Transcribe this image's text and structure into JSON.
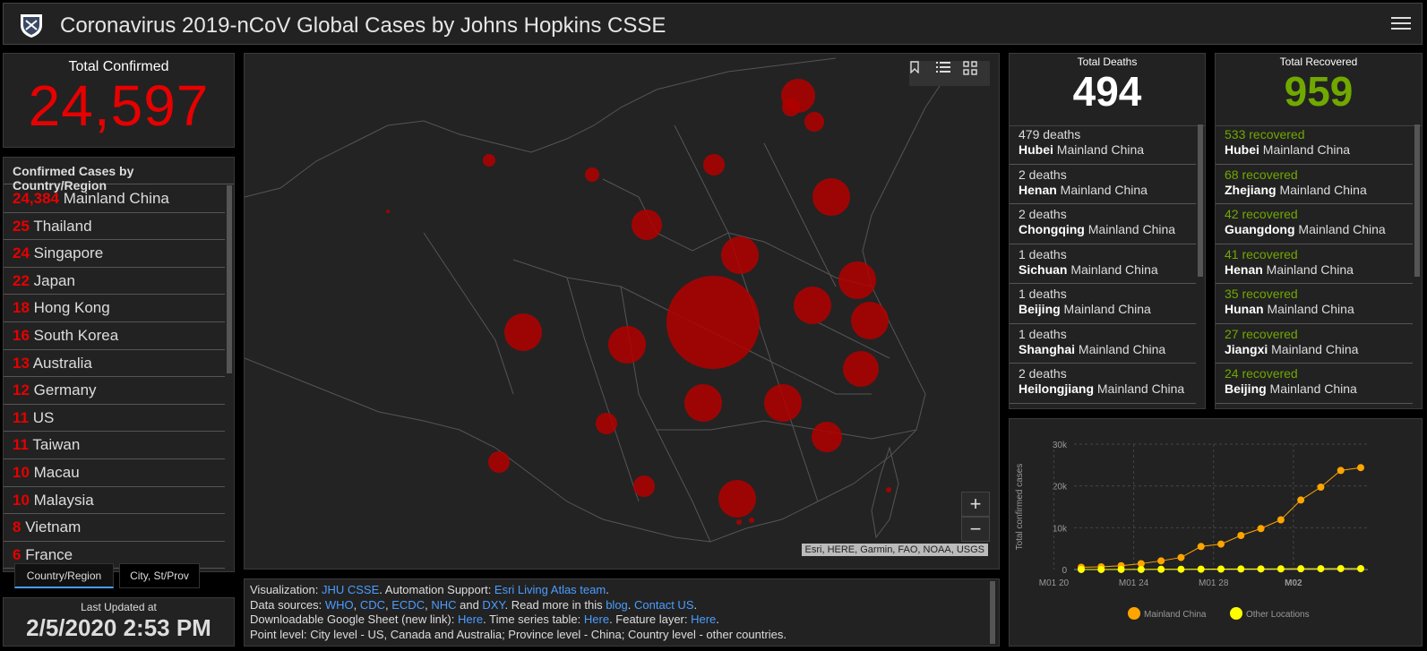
{
  "header": {
    "title": "Coronavirus 2019-nCoV Global Cases by Johns Hopkins CSSE"
  },
  "total_confirmed": {
    "label": "Total Confirmed",
    "value": "24,597"
  },
  "country_list": {
    "header": "Confirmed Cases by Country/Region",
    "items": [
      {
        "count": "24,384",
        "name": "Mainland China"
      },
      {
        "count": "25",
        "name": "Thailand"
      },
      {
        "count": "24",
        "name": "Singapore"
      },
      {
        "count": "22",
        "name": "Japan"
      },
      {
        "count": "18",
        "name": "Hong Kong"
      },
      {
        "count": "16",
        "name": "South Korea"
      },
      {
        "count": "13",
        "name": "Australia"
      },
      {
        "count": "12",
        "name": "Germany"
      },
      {
        "count": "11",
        "name": "US"
      },
      {
        "count": "11",
        "name": "Taiwan"
      },
      {
        "count": "10",
        "name": "Macau"
      },
      {
        "count": "10",
        "name": "Malaysia"
      },
      {
        "count": "8",
        "name": "Vietnam"
      },
      {
        "count": "6",
        "name": "France"
      }
    ]
  },
  "tabs": {
    "country": "Country/Region",
    "city": "City, St/Prov"
  },
  "last_updated": {
    "label": "Last Updated at",
    "value": "2/5/2020 2:53 PM"
  },
  "map": {
    "attribution": "Esri, HERE, Garmin, FAO, NOAA, USGS",
    "zoom_in": "+",
    "zoom_out": "−",
    "tools": [
      "bookmark-icon",
      "legend-list-icon",
      "qr-grid-icon"
    ]
  },
  "sources": {
    "line1": {
      "prefix": "Visualization: ",
      "link1": "JHU CSSE",
      "mid": ". Automation Support: ",
      "link2": "Esri Living Atlas team",
      "suffix": "."
    },
    "line2": {
      "prefix": "Data sources: ",
      "links": [
        "WHO",
        "CDC",
        "ECDC",
        "NHC"
      ],
      "and": " and ",
      "dxy": "DXY",
      "mid": ". Read more in this ",
      "blog": "blog",
      "dot": ". ",
      "contact": "Contact US",
      "end": "."
    },
    "line3": {
      "prefix": "Downloadable Google Sheet (new link): ",
      "here1": "Here",
      "mid1": ". Time series table: ",
      "here2": "Here",
      "mid2": ". Feature layer: ",
      "here3": "Here",
      "end": "."
    },
    "line4": "Point level: City level - US, Canada and Australia; Province level - China; Country level - other countries."
  },
  "deaths": {
    "label": "Total Deaths",
    "value": "494",
    "items": [
      {
        "count": "479 deaths",
        "province": "Hubei",
        "region": "Mainland China"
      },
      {
        "count": "2 deaths",
        "province": "Henan",
        "region": "Mainland China"
      },
      {
        "count": "2 deaths",
        "province": "Chongqing",
        "region": "Mainland China"
      },
      {
        "count": "1 deaths",
        "province": "Sichuan",
        "region": "Mainland China"
      },
      {
        "count": "1 deaths",
        "province": "Beijing",
        "region": "Mainland China"
      },
      {
        "count": "1 deaths",
        "province": "Shanghai",
        "region": "Mainland China"
      },
      {
        "count": "2 deaths",
        "province": "Heilongjiang",
        "region": "Mainland China"
      }
    ]
  },
  "recovered": {
    "label": "Total Recovered",
    "value": "959",
    "items": [
      {
        "count": "533 recovered",
        "province": "Hubei",
        "region": "Mainland China"
      },
      {
        "count": "68 recovered",
        "province": "Zhejiang",
        "region": "Mainland China"
      },
      {
        "count": "42 recovered",
        "province": "Guangdong",
        "region": "Mainland China"
      },
      {
        "count": "41 recovered",
        "province": "Henan",
        "region": "Mainland China"
      },
      {
        "count": "35 recovered",
        "province": "Hunan",
        "region": "Mainland China"
      },
      {
        "count": "27 recovered",
        "province": "Jiangxi",
        "region": "Mainland China"
      },
      {
        "count": "24 recovered",
        "province": "Beijing",
        "region": "Mainland China"
      }
    ]
  },
  "colors": {
    "confirmed": "#e60000",
    "deaths": "#ffffff",
    "recovered": "#70a800",
    "link": "#4b9dff",
    "china_series": "#ffa500",
    "other_series": "#ffff00"
  },
  "chart_data": {
    "type": "line",
    "ylabel": "Total confirmed cases",
    "ylim": [
      0,
      30000
    ],
    "yticks": [
      "0",
      "10k",
      "20k",
      "30k"
    ],
    "xticks": [
      "M01 20",
      "M01 24",
      "M01 28",
      "M02"
    ],
    "x": [
      "2020-01-22",
      "2020-01-23",
      "2020-01-24",
      "2020-01-25",
      "2020-01-26",
      "2020-01-27",
      "2020-01-28",
      "2020-01-29",
      "2020-01-30",
      "2020-01-31",
      "2020-02-01",
      "2020-02-02",
      "2020-02-03",
      "2020-02-04",
      "2020-02-05"
    ],
    "series": [
      {
        "name": "Mainland China",
        "values": [
          548,
          643,
          920,
          1406,
          2075,
          2877,
          5509,
          6087,
          8141,
          9802,
          11891,
          16630,
          19716,
          23707,
          24384
        ]
      },
      {
        "name": "Other Locations",
        "values": [
          7,
          10,
          21,
          29,
          52,
          62,
          81,
          105,
          128,
          143,
          162,
          179,
          192,
          226,
          213
        ]
      }
    ],
    "legend_position": "bottom",
    "grid": true
  }
}
